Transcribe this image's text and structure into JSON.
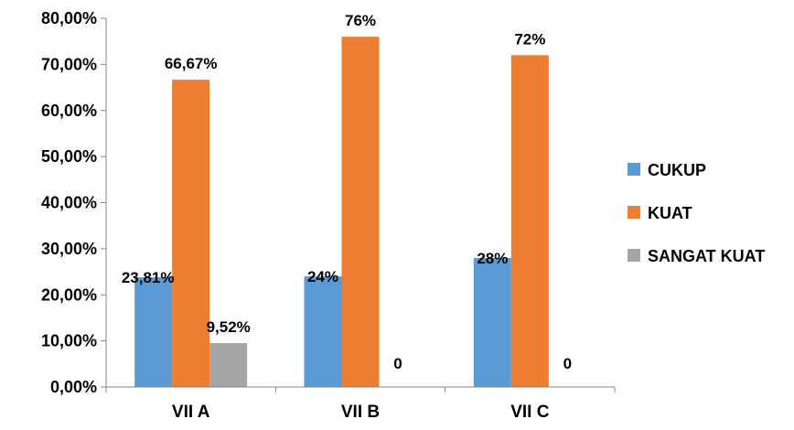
{
  "chart_data": {
    "type": "bar",
    "title": "",
    "xlabel": "",
    "ylabel": "",
    "categories": [
      "VII A",
      "VII B",
      "VII C"
    ],
    "ylim": [
      0,
      0.8
    ],
    "yticks": [
      0,
      0.1,
      0.2,
      0.3,
      0.4,
      0.5,
      0.6,
      0.7,
      0.8
    ],
    "ytick_labels": [
      "0,00%",
      "10,00%",
      "20,00%",
      "30,00%",
      "40,00%",
      "50,00%",
      "60,00%",
      "70,00%",
      "80,00%"
    ],
    "grid": false,
    "legend_position": "right",
    "series": [
      {
        "name": "CUKUP",
        "color": "#5b9bd5",
        "values": [
          0.2381,
          0.24,
          0.28
        ],
        "labels": [
          "23,81%",
          "24%",
          "28%"
        ]
      },
      {
        "name": "KUAT",
        "color": "#ed7d31",
        "values": [
          0.6667,
          0.76,
          0.72
        ],
        "labels": [
          "66,67%",
          "76%",
          "72%"
        ]
      },
      {
        "name": "SANGAT KUAT",
        "color": "#a5a5a5",
        "values": [
          0.0952,
          0,
          0
        ],
        "labels": [
          "9,52%",
          "0",
          "0"
        ]
      }
    ]
  }
}
